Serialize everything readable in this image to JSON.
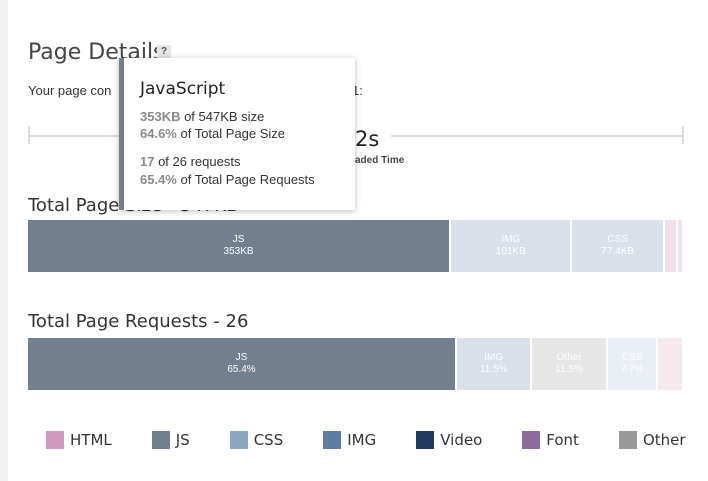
{
  "page": {
    "title": "Page Details",
    "help_badge": "?",
    "description_start": "Your page con",
    "description_end": "1:"
  },
  "timeline": {
    "value": "2s",
    "label": "aded Time"
  },
  "page_size": {
    "title": "Total Page Size - 547KB",
    "segments": [
      {
        "name": "JS",
        "value": "353KB",
        "share": 0.645,
        "color": "#717f8f",
        "faded": false
      },
      {
        "name": "IMG",
        "value": "101KB",
        "share": 0.185,
        "color": "#8ba2bf",
        "faded": true
      },
      {
        "name": "CSS",
        "value": "77.4KB",
        "share": 0.141,
        "color": "#8ba2bf",
        "faded": true
      },
      {
        "name": "",
        "value": "",
        "share": 0.02,
        "color": "#d79dc4",
        "faded": true
      },
      {
        "name": "",
        "value": "",
        "share": 0.009,
        "color": "#d7a6c5",
        "faded": true
      }
    ]
  },
  "page_requests": {
    "title": "Total Page Requests - 26",
    "segments": [
      {
        "name": "JS",
        "value": "65.4%",
        "share": 0.654,
        "color": "#717f8f",
        "faded": false
      },
      {
        "name": "IMG",
        "value": "11.5%",
        "share": 0.115,
        "color": "#8ba2bf",
        "faded": true
      },
      {
        "name": "Other",
        "value": "11.5%",
        "share": 0.115,
        "color": "#b4b4b4",
        "faded": true
      },
      {
        "name": "CSS",
        "value": "7.7%",
        "share": 0.077,
        "color": "#bdcfe3",
        "faded": true
      },
      {
        "name": "",
        "value": "",
        "share": 0.039,
        "color": "#e8b8cf",
        "faded": true
      }
    ]
  },
  "legend": [
    {
      "label": "HTML",
      "color": "#cf98bc",
      "icon": "html-swatch"
    },
    {
      "label": "JS",
      "color": "#717f8f",
      "icon": "js-swatch"
    },
    {
      "label": "CSS",
      "color": "#8ba6c3",
      "icon": "css-swatch"
    },
    {
      "label": "IMG",
      "color": "#5f7da4",
      "icon": "img-swatch"
    },
    {
      "label": "Video",
      "color": "#1f3a5f",
      "icon": "video-swatch"
    },
    {
      "label": "Font",
      "color": "#8c6a9b",
      "icon": "font-swatch"
    },
    {
      "label": "Other",
      "color": "#999999",
      "icon": "other-swatch"
    }
  ],
  "tooltip": {
    "title": "JavaScript",
    "accent_color": "#717f8f",
    "size_value": "353KB",
    "size_text": " of 547KB size",
    "size_pct": "64.6%",
    "size_pct_text": " of Total Page Size",
    "req_value": "17",
    "req_text": " of 26 requests",
    "req_pct": "65.4%",
    "req_pct_text": " of Total Page Requests"
  }
}
